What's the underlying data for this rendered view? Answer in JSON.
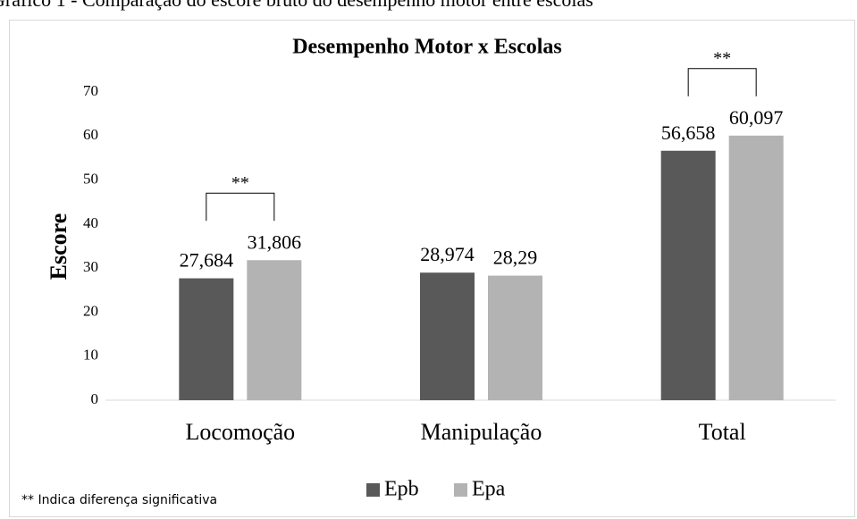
{
  "caption": "Gráfico 1 - Comparação do escore bruto do desempenho motor entre escolas",
  "chart_data": {
    "type": "bar",
    "title": "Desempenho Motor x Escolas",
    "y_label": "Escore",
    "categories": [
      "Locomoção",
      "Manipulação",
      "Total"
    ],
    "series": [
      {
        "name": "Epb",
        "color": "#595959",
        "values": [
          27.684,
          28.974,
          56.658
        ],
        "value_labels": [
          "27,684",
          "28,974",
          "56,658"
        ]
      },
      {
        "name": "Epa",
        "color": "#b3b3b3",
        "values": [
          31.806,
          28.29,
          60.097
        ],
        "value_labels": [
          "31,806",
          "28,29",
          "60,097"
        ]
      }
    ],
    "ylim": [
      0,
      70
    ],
    "yticks": [
      0,
      10,
      20,
      30,
      40,
      50,
      60,
      70
    ],
    "grid": false,
    "legend": "bottom",
    "annotations": [
      {
        "text": "**",
        "category": "Locomoção"
      },
      {
        "text": "**",
        "category": "Total"
      }
    ],
    "footnote": "** Indica diferença significativa"
  }
}
